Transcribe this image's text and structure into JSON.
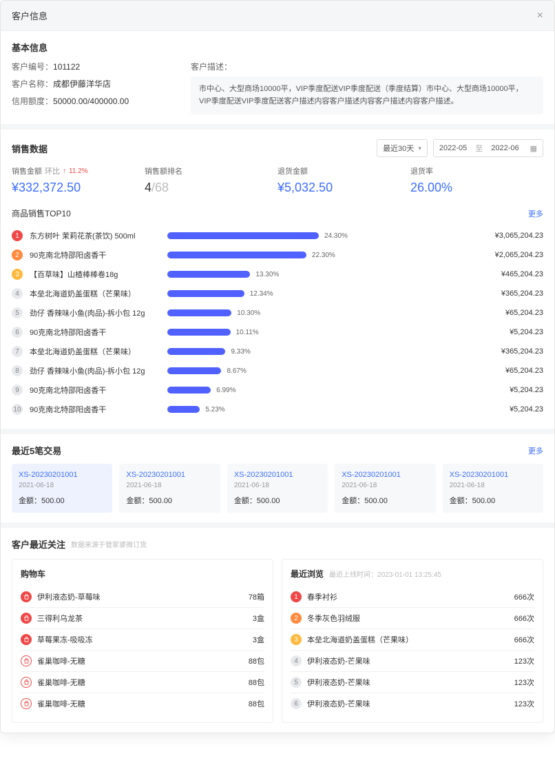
{
  "header": {
    "title": "客户信息"
  },
  "basic": {
    "section_title": "基本信息",
    "id_label": "客户编号：",
    "id_value": "101122",
    "name_label": "客户名称：",
    "name_value": "成都伊藤洋华店",
    "credit_label": "信用额度：",
    "credit_value": "50000.00/400000.00",
    "desc_label": "客户描述：",
    "desc_text": "市中心、大型商场10000平，VIP季度配送VIP季度配送（季度结算）市中心、大型商场10000平，VIP季度配送VIP季度配送客户描述内容客户描述内容客户描述内容客户描述。"
  },
  "sales": {
    "section_title": "销售数据",
    "period_label": "最近30天",
    "date_from": "2022-05",
    "date_to": "2022-06",
    "date_sep": "至",
    "metrics": {
      "amount_label": "销售金额",
      "amount_trend_label": "环比",
      "amount_trend_value": "11.2%",
      "amount_value": "¥332,372.50",
      "rank_label": "销售额排名",
      "rank_value": "4",
      "rank_total": "/68",
      "return_amt_label": "退货金额",
      "return_amt_value": "¥5,032.50",
      "return_rate_label": "退货率",
      "return_rate_value": "26.00%"
    },
    "top10": {
      "title": "商品销售TOP10",
      "more": "更多",
      "bar_color": "#5061ff",
      "rows": [
        {
          "rank": 1,
          "name": "东方树叶 茉莉花茶(茶饮) 500ml",
          "pct": 24.3,
          "pct_label": "24.30%",
          "amount": "¥3,065,204.23"
        },
        {
          "rank": 2,
          "name": "90克南北特邵阳卤香干",
          "pct": 22.3,
          "pct_label": "22.30%",
          "amount": "¥2,065,204.23"
        },
        {
          "rank": 3,
          "name": "【百草味】山楂棒棒卷18g",
          "pct": 13.3,
          "pct_label": "13.30%",
          "amount": "¥465,204.23"
        },
        {
          "rank": 4,
          "name": "本垒北海道奶盖蛋糕（芒果味）",
          "pct": 12.34,
          "pct_label": "12.34%",
          "amount": "¥365,204.23"
        },
        {
          "rank": 5,
          "name": "劲仔 香辣味小鱼(肉品)-拆小包 12g",
          "pct": 10.3,
          "pct_label": "10.30%",
          "amount": "¥65,204.23"
        },
        {
          "rank": 6,
          "name": "90克南北特邵阳卤香干",
          "pct": 10.11,
          "pct_label": "10.11%",
          "amount": "¥5,204.23"
        },
        {
          "rank": 7,
          "name": "本垒北海道奶盖蛋糕（芒果味）",
          "pct": 9.33,
          "pct_label": "9.33%",
          "amount": "¥365,204.23"
        },
        {
          "rank": 8,
          "name": "劲仔 香辣味小鱼(肉品)-拆小包 12g",
          "pct": 8.67,
          "pct_label": "8.67%",
          "amount": "¥65,204.23"
        },
        {
          "rank": 9,
          "name": "90克南北特邵阳卤香干",
          "pct": 6.99,
          "pct_label": "6.99%",
          "amount": "¥5,204.23"
        },
        {
          "rank": 10,
          "name": "90克南北特邵阳卤香干",
          "pct": 5.23,
          "pct_label": "5.23%",
          "amount": "¥5,204.23"
        }
      ]
    }
  },
  "transactions": {
    "section_title": "最近5笔交易",
    "more": "更多",
    "amount_label": "金额：",
    "items": [
      {
        "id": "XS-20230201001",
        "date": "2021-06-18",
        "amount": "500.00",
        "active": true
      },
      {
        "id": "XS-20230201001",
        "date": "2021-06-18",
        "amount": "500.00",
        "active": false
      },
      {
        "id": "XS-20230201001",
        "date": "2021-06-18",
        "amount": "500.00",
        "active": false
      },
      {
        "id": "XS-20230201001",
        "date": "2021-06-18",
        "amount": "500.00",
        "active": false
      },
      {
        "id": "XS-20230201001",
        "date": "2021-06-18",
        "amount": "500.00",
        "active": false
      }
    ]
  },
  "attention": {
    "section_title": "客户最近关注",
    "section_sub": "数据来源于管家婆微订货",
    "cart": {
      "title": "购物车",
      "items": [
        {
          "name": "伊利液态奶-草莓味",
          "qty": "78箱",
          "filled": true
        },
        {
          "name": "三得利乌龙茶",
          "qty": "3盒",
          "filled": true
        },
        {
          "name": "草莓果冻-吸吸冻",
          "qty": "3盒",
          "filled": true
        },
        {
          "name": "雀巢咖啡-无糖",
          "qty": "88包",
          "filled": false
        },
        {
          "name": "雀巢咖啡-无糖",
          "qty": "88包",
          "filled": false
        },
        {
          "name": "雀巢咖啡-无糖",
          "qty": "88包",
          "filled": false
        }
      ]
    },
    "browse": {
      "title": "最近浏览",
      "sub_label": "最近上线时间：",
      "sub_value": "2023-01-01 13:25:45",
      "items": [
        {
          "rank": 1,
          "name": "春季衬衫",
          "qty": "666次"
        },
        {
          "rank": 2,
          "name": "冬季灰色羽绒服",
          "qty": "666次"
        },
        {
          "rank": 3,
          "name": "本垒北海道奶盖蛋糕（芒果味）",
          "qty": "666次"
        },
        {
          "rank": 4,
          "name": "伊利液态奶-芒果味",
          "qty": "123次"
        },
        {
          "rank": 5,
          "name": "伊利液态奶-芒果味",
          "qty": "123次"
        },
        {
          "rank": 6,
          "name": "伊利液态奶-芒果味",
          "qty": "123次"
        }
      ]
    }
  }
}
